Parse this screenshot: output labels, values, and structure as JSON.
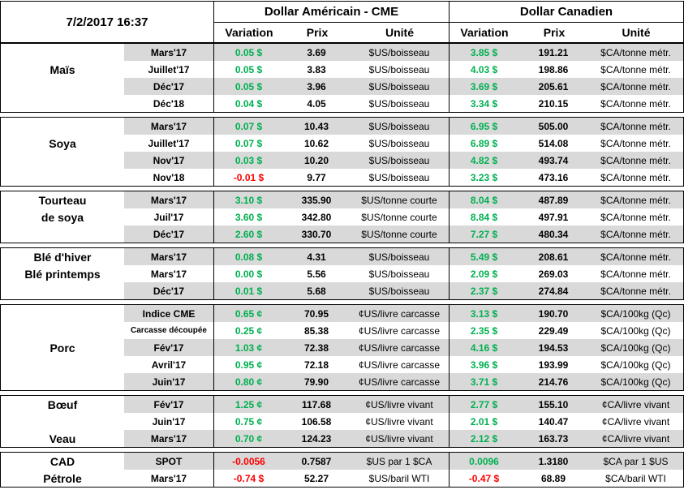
{
  "colors": {
    "positive": "#00B050",
    "negative": "#FF0000",
    "stripe": "#D9D9D9",
    "border": "#000000"
  },
  "chart_data": {
    "type": "table",
    "datetime": "7/2/2017 16:37",
    "us": {
      "title": "Dollar Américain - CME",
      "columns": [
        "Variation",
        "Prix",
        "Unité"
      ]
    },
    "ca": {
      "title": "Dollar Canadien",
      "columns": [
        "Variation",
        "Prix",
        "Unité"
      ]
    },
    "groups": [
      {
        "id": "mais",
        "rows": [
          {
            "label": "",
            "month": "Mars'17",
            "us_var": "0.05 $",
            "us_prix": "3.69",
            "us_unit": "$US/boisseau",
            "ca_var": "3.85 $",
            "ca_prix": "191.21",
            "ca_unit": "$CA/tonne métr."
          },
          {
            "label": "Maïs",
            "month": "Juillet'17",
            "us_var": "0.05 $",
            "us_prix": "3.83",
            "us_unit": "$US/boisseau",
            "ca_var": "4.03 $",
            "ca_prix": "198.86",
            "ca_unit": "$CA/tonne métr."
          },
          {
            "label": "",
            "month": "Déc'17",
            "us_var": "0.05 $",
            "us_prix": "3.96",
            "us_unit": "$US/boisseau",
            "ca_var": "3.69 $",
            "ca_prix": "205.61",
            "ca_unit": "$CA/tonne métr."
          },
          {
            "label": "",
            "month": "Déc'18",
            "us_var": "0.04 $",
            "us_prix": "4.05",
            "us_unit": "$US/boisseau",
            "ca_var": "3.34 $",
            "ca_prix": "210.15",
            "ca_unit": "$CA/tonne métr."
          }
        ]
      },
      {
        "id": "soya",
        "rows": [
          {
            "label": "",
            "month": "Mars'17",
            "us_var": "0.07 $",
            "us_prix": "10.43",
            "us_unit": "$US/boisseau",
            "ca_var": "6.95 $",
            "ca_prix": "505.00",
            "ca_unit": "$CA/tonne métr."
          },
          {
            "label": "Soya",
            "month": "Juillet'17",
            "us_var": "0.07 $",
            "us_prix": "10.62",
            "us_unit": "$US/boisseau",
            "ca_var": "6.89 $",
            "ca_prix": "514.08",
            "ca_unit": "$CA/tonne métr."
          },
          {
            "label": "",
            "month": "Nov'17",
            "us_var": "0.03 $",
            "us_prix": "10.20",
            "us_unit": "$US/boisseau",
            "ca_var": "4.82 $",
            "ca_prix": "493.74",
            "ca_unit": "$CA/tonne métr."
          },
          {
            "label": "",
            "month": "Nov'18",
            "us_var": "-0.01 $",
            "us_prix": "9.77",
            "us_unit": "$US/boisseau",
            "ca_var": "3.23 $",
            "ca_prix": "473.16",
            "ca_unit": "$CA/tonne métr."
          }
        ]
      },
      {
        "id": "tourteau-de-soya",
        "rows": [
          {
            "label": "Tourteau",
            "month": "Mars'17",
            "us_var": "3.10 $",
            "us_prix": "335.90",
            "us_unit": "$US/tonne courte",
            "ca_var": "8.04 $",
            "ca_prix": "487.89",
            "ca_unit": "$CA/tonne métr."
          },
          {
            "label": "de soya",
            "month": "Juil'17",
            "us_var": "3.60 $",
            "us_prix": "342.80",
            "us_unit": "$US/tonne courte",
            "ca_var": "8.84 $",
            "ca_prix": "497.91",
            "ca_unit": "$CA/tonne métr."
          },
          {
            "label": "",
            "month": "Déc'17",
            "us_var": "2.60 $",
            "us_prix": "330.70",
            "us_unit": "$US/tonne courte",
            "ca_var": "7.27 $",
            "ca_prix": "480.34",
            "ca_unit": "$CA/tonne métr."
          }
        ]
      },
      {
        "id": "ble",
        "rows": [
          {
            "label": "Blé d'hiver",
            "month": "Mars'17",
            "us_var": "0.08 $",
            "us_prix": "4.31",
            "us_unit": "$US/boisseau",
            "ca_var": "5.49 $",
            "ca_prix": "208.61",
            "ca_unit": "$CA/tonne métr."
          },
          {
            "label": "Blé printemps",
            "month": "Mars'17",
            "us_var": "0.00 $",
            "us_prix": "5.56",
            "us_unit": "$US/boisseau",
            "ca_var": "2.09 $",
            "ca_prix": "269.03",
            "ca_unit": "$CA/tonne métr."
          },
          {
            "label": "",
            "month": "Déc'17",
            "us_var": "0.01 $",
            "us_prix": "5.68",
            "us_unit": "$US/boisseau",
            "ca_var": "2.37 $",
            "ca_prix": "274.84",
            "ca_unit": "$CA/tonne métr."
          }
        ]
      },
      {
        "id": "porc",
        "rows": [
          {
            "label": "",
            "month": "Indice CME",
            "us_var": "0.65 ¢",
            "us_prix": "70.95",
            "us_unit": "¢US/livre carcasse",
            "ca_var": "3.13 $",
            "ca_prix": "190.70",
            "ca_unit": "$CA/100kg (Qc)"
          },
          {
            "label": "",
            "month": "Carcasse découpée",
            "us_var": "0.25 ¢",
            "us_prix": "85.38",
            "us_unit": "¢US/livre carcasse",
            "ca_var": "2.35 $",
            "ca_prix": "229.49",
            "ca_unit": "$CA/100kg (Qc)"
          },
          {
            "label": "Porc",
            "month": "Fév'17",
            "us_var": "1.03 ¢",
            "us_prix": "72.38",
            "us_unit": "¢US/livre carcasse",
            "ca_var": "4.16 $",
            "ca_prix": "194.53",
            "ca_unit": "$CA/100kg (Qc)"
          },
          {
            "label": "",
            "month": "Avril'17",
            "us_var": "0.95 ¢",
            "us_prix": "72.18",
            "us_unit": "¢US/livre carcasse",
            "ca_var": "3.96 $",
            "ca_prix": "193.99",
            "ca_unit": "$CA/100kg (Qc)"
          },
          {
            "label": "",
            "month": "Juin'17",
            "us_var": "0.80 ¢",
            "us_prix": "79.90",
            "us_unit": "¢US/livre carcasse",
            "ca_var": "3.71 $",
            "ca_prix": "214.76",
            "ca_unit": "$CA/100kg (Qc)"
          }
        ]
      },
      {
        "id": "boeuf-veau",
        "rows": [
          {
            "label": "Bœuf",
            "month": "Fév'17",
            "us_var": "1.25 ¢",
            "us_prix": "117.68",
            "us_unit": "¢US/livre vivant",
            "ca_var": "2.77 $",
            "ca_prix": "155.10",
            "ca_unit": "¢CA/livre vivant"
          },
          {
            "label": "",
            "month": "Juin'17",
            "us_var": "0.75 ¢",
            "us_prix": "106.58",
            "us_unit": "¢US/livre vivant",
            "ca_var": "2.01 $",
            "ca_prix": "140.47",
            "ca_unit": "¢CA/livre vivant"
          },
          {
            "label": "Veau",
            "month": "Mars'17",
            "us_var": "0.70 ¢",
            "us_prix": "124.23",
            "us_unit": "¢US/livre vivant",
            "ca_var": "2.12 $",
            "ca_prix": "163.73",
            "ca_unit": "¢CA/livre vivant"
          }
        ]
      },
      {
        "id": "cad-petrole",
        "rows": [
          {
            "label": "CAD",
            "month": "SPOT",
            "us_var": "-0.0056",
            "us_prix": "0.7587",
            "us_unit": "$US par 1 $CA",
            "ca_var": "0.0096",
            "ca_prix": "1.3180",
            "ca_unit": "$CA par 1 $US"
          },
          {
            "label": "Pétrole",
            "month": "Mars'17",
            "us_var": "-0.74 $",
            "us_prix": "52.27",
            "us_unit": "$US/baril WTI",
            "ca_var": "-0.47 $",
            "ca_prix": "68.89",
            "ca_unit": "$CA/baril WTI"
          }
        ]
      }
    ]
  }
}
